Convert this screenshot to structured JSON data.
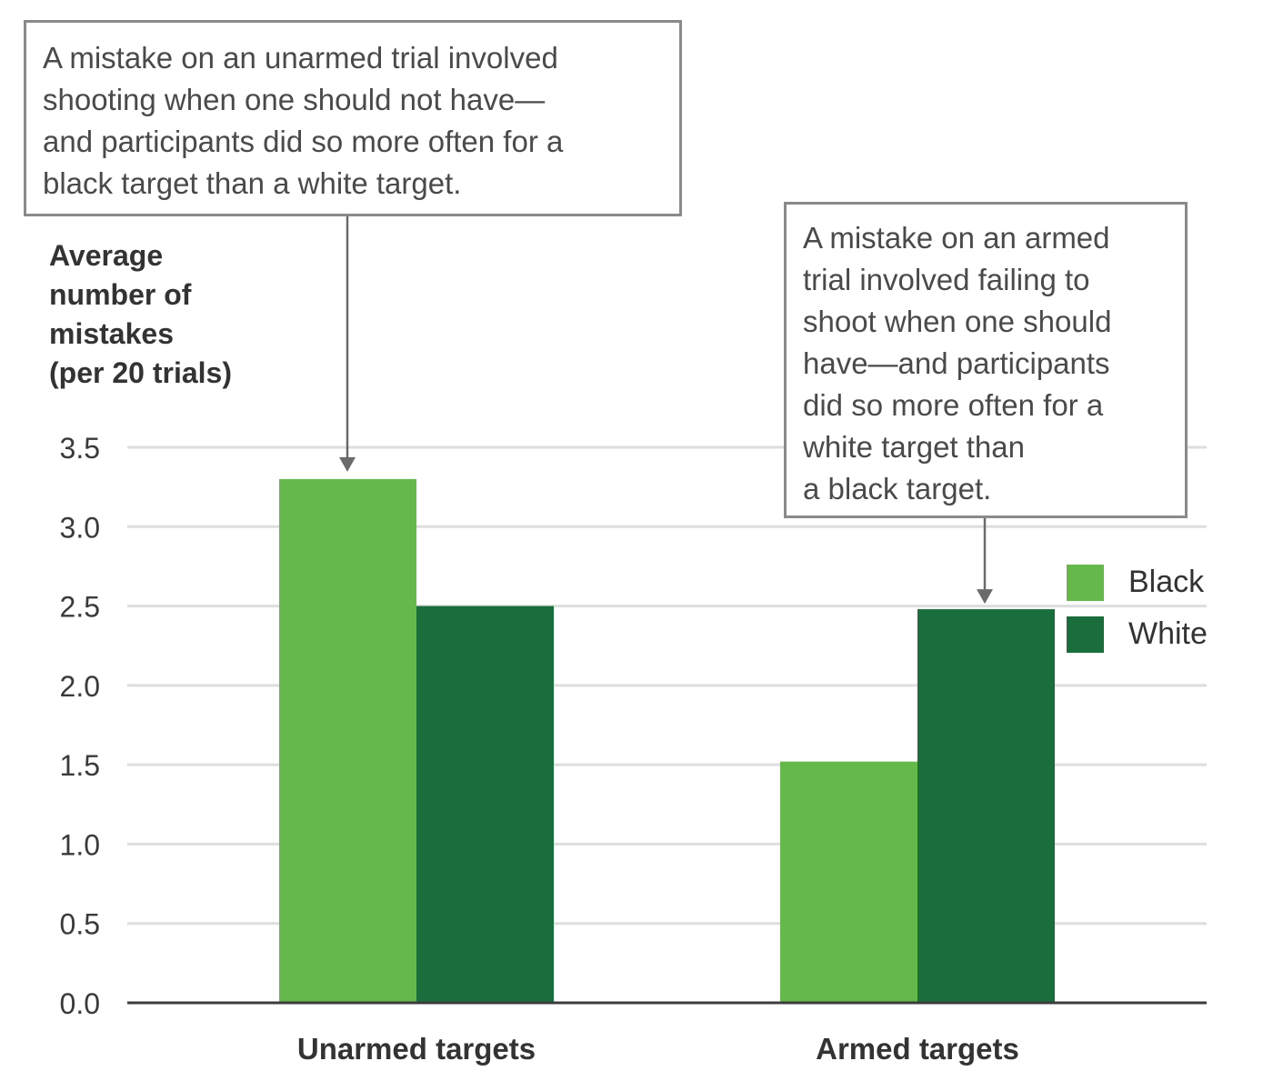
{
  "chart_data": {
    "type": "bar",
    "categories": [
      "Unarmed targets",
      "Armed targets"
    ],
    "series": [
      {
        "name": "Black",
        "color": "#65b94a",
        "values": [
          3.3,
          1.52
        ]
      },
      {
        "name": "White",
        "color": "#1a6e3c",
        "values": [
          2.5,
          2.48
        ]
      }
    ],
    "ylabel": "Average number of mistakes (per 20 trials)",
    "ylabel_lines": [
      "Average",
      "number of",
      "mistakes",
      "(per 20 trials)"
    ],
    "xlabel": "",
    "ylim": [
      0,
      3.5
    ],
    "yticks": [
      "0.0",
      "0.5",
      "1.0",
      "1.5",
      "2.0",
      "2.5",
      "3.0",
      "3.5"
    ],
    "grid": true,
    "legend_position": "right",
    "annotations": [
      {
        "target": "Unarmed targets / Black",
        "lines": [
          "A mistake on an unarmed trial involved",
          "shooting when one should not have—",
          "and participants did so more often for a",
          "black target than a white target."
        ]
      },
      {
        "target": "Armed targets / White",
        "lines": [
          "A mistake on an armed",
          "trial involved failing to",
          "shoot when one should",
          "have—and participants",
          "did so more often for a",
          "white target than",
          "a black target."
        ]
      }
    ]
  }
}
